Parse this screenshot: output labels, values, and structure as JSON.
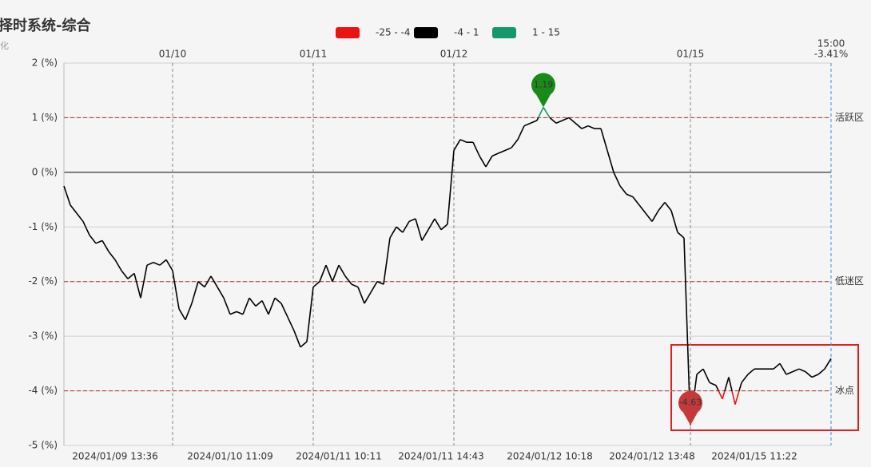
{
  "chart_data": {
    "type": "line",
    "title": "择时系统-综合",
    "subtitle": "化",
    "categories": [
      null,
      null,
      null,
      null,
      null,
      null,
      null,
      null,
      "2024/01/09 13:36",
      null,
      null,
      null,
      null,
      null,
      null,
      null,
      null,
      null,
      null,
      null,
      null,
      null,
      null,
      null,
      null,
      null,
      "2024/01/10 11:09",
      null,
      null,
      null,
      null,
      null,
      null,
      null,
      null,
      null,
      null,
      null,
      null,
      null,
      null,
      null,
      null,
      "2024/01/11 10:11",
      null,
      null,
      null,
      null,
      null,
      null,
      null,
      null,
      null,
      null,
      null,
      null,
      null,
      null,
      null,
      "2024/01/11 14:43",
      null,
      null,
      null,
      null,
      null,
      null,
      null,
      null,
      null,
      null,
      null,
      null,
      null,
      null,
      null,
      null,
      "2024/01/12 10:18",
      null,
      null,
      null,
      null,
      null,
      null,
      null,
      null,
      null,
      null,
      null,
      null,
      null,
      null,
      null,
      "2024/01/12 13:48",
      null,
      null,
      null,
      null,
      null,
      null,
      null,
      null,
      null,
      null,
      null,
      null,
      null,
      null,
      null,
      "2024/01/15 11:22",
      null,
      null,
      null,
      null,
      null,
      null,
      null,
      null,
      null,
      null,
      null,
      null
    ],
    "series": [
      {
        "name": "综合",
        "color": "#000000",
        "values": [
          -0.25,
          -0.6,
          -0.75,
          -0.9,
          -1.15,
          -1.3,
          -1.25,
          -1.45,
          -1.6,
          -1.8,
          -1.95,
          -1.85,
          -2.3,
          -1.7,
          -1.65,
          -1.7,
          -1.6,
          -1.8,
          -2.5,
          -2.7,
          -2.4,
          -2.0,
          -2.1,
          -1.9,
          -2.1,
          -2.3,
          -2.6,
          -2.55,
          -2.6,
          -2.3,
          -2.45,
          -2.35,
          -2.6,
          -2.3,
          -2.4,
          -2.65,
          -2.9,
          -3.2,
          -3.1,
          -2.1,
          -2.0,
          -1.7,
          -2.0,
          -1.7,
          -1.9,
          -2.05,
          -2.1,
          -2.4,
          -2.2,
          -2.0,
          -2.05,
          -1.2,
          -1.0,
          -1.1,
          -0.9,
          -0.85,
          -1.25,
          -1.05,
          -0.85,
          -1.05,
          -0.95,
          0.4,
          0.6,
          0.55,
          0.55,
          0.3,
          0.1,
          0.3,
          0.35,
          0.4,
          0.45,
          0.6,
          0.85,
          0.9,
          0.95,
          1.19,
          1.0,
          0.9,
          0.95,
          1.0,
          0.9,
          0.8,
          0.85,
          0.8,
          0.8,
          0.4,
          0.0,
          -0.25,
          -0.4,
          -0.45,
          -0.6,
          -0.75,
          -0.9,
          -0.7,
          -0.55,
          -0.7,
          -1.1,
          -1.2,
          -4.63,
          -3.7,
          -3.6,
          -3.85,
          -3.9,
          -4.15,
          -3.75,
          -4.25,
          -3.85,
          -3.7,
          -3.6,
          -3.6,
          -3.6,
          -3.6,
          -3.5,
          -3.7,
          -3.65,
          -3.6,
          -3.65,
          -3.75,
          -3.7,
          -3.6,
          -3.41
        ]
      }
    ],
    "color_bands": [
      {
        "min": -25,
        "max": -4,
        "label": "-25 - -4",
        "color": "#ee1111"
      },
      {
        "min": -4,
        "max": 1,
        "label": "-4 - 1",
        "color": "#000000"
      },
      {
        "min": 1,
        "max": 15,
        "label": "1 - 15",
        "color": "#16996a"
      }
    ],
    "ylim": [
      -5,
      2
    ],
    "yticks": [
      {
        "value": 2,
        "label": "2 (%)"
      },
      {
        "value": 1,
        "label": "1 (%)"
      },
      {
        "value": 0,
        "label": "0 (%)"
      },
      {
        "value": -1,
        "label": "-1 (%)"
      },
      {
        "value": -2,
        "label": "-2 (%)"
      },
      {
        "value": -3,
        "label": "-3 (%)"
      },
      {
        "value": -4,
        "label": "-4 (%)"
      },
      {
        "value": -5,
        "label": "-5 (%)"
      }
    ],
    "grid": true,
    "reference_lines": [
      {
        "value": 1,
        "label": "活跃区"
      },
      {
        "value": -2,
        "label": "低迷区"
      },
      {
        "value": -4,
        "label": "冰点"
      }
    ],
    "day_breaks": [
      {
        "at": 17,
        "label": "01/10"
      },
      {
        "at": 39,
        "label": "01/11"
      },
      {
        "at": 61,
        "label": "01/12"
      },
      {
        "at": 98,
        "label": "01/15"
      }
    ],
    "end_marker": {
      "time": "15:00",
      "value": -3.41,
      "label": "-3.41%"
    },
    "max_pin_color": "#1a8a1a",
    "min_pin_color": "#c43a3a"
  }
}
